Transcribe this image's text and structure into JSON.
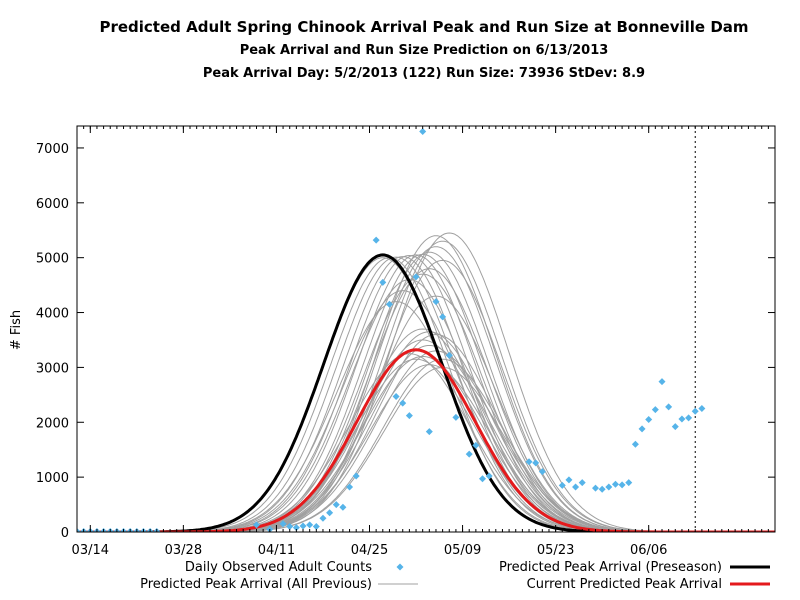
{
  "chart_data": {
    "type": "line",
    "title": "Predicted Adult Spring Chinook Arrival Peak and Run Size at Bonneville Dam",
    "subtitle": "Peak Arrival and Run Size Prediction on 6/13/2013",
    "subtitle2": "Peak Arrival Day: 5/2/2013 (122) Run Size: 73936 StDev: 8.9",
    "ylabel": "# Fish",
    "xlabel": "",
    "xlim": [
      "2013-03-12",
      "2013-06-25"
    ],
    "ylim": [
      0,
      7400
    ],
    "x_ticks": [
      {
        "date": "2013-03-14",
        "label": "03/14"
      },
      {
        "date": "2013-03-28",
        "label": "03/28"
      },
      {
        "date": "2013-04-11",
        "label": "04/11"
      },
      {
        "date": "2013-04-25",
        "label": "04/25"
      },
      {
        "date": "2013-05-09",
        "label": "05/09"
      },
      {
        "date": "2013-05-23",
        "label": "05/23"
      },
      {
        "date": "2013-06-06",
        "label": "06/06"
      }
    ],
    "y_ticks": [
      0,
      1000,
      2000,
      3000,
      4000,
      5000,
      6000,
      7000
    ],
    "vertical_marker_date": "2013-06-13",
    "legend": {
      "observed": "Daily Observed Adult Counts",
      "all_previous": "Predicted Peak Arrival (All Previous)",
      "preseason": "Predicted Peak Arrival (Preseason)",
      "current": "Current Predicted Peak Arrival"
    },
    "colors": {
      "observed": "#56b4e9",
      "all_previous": "#a0a0a0",
      "preseason": "#000000",
      "current": "#e41a1c"
    },
    "preseason_curve": {
      "peak_date": "2013-04-27",
      "peak": 5050,
      "stdev": 8.9
    },
    "current_curve": {
      "peak_date": "2013-05-02",
      "peak": 3320,
      "stdev": 8.9
    },
    "previous_curves": [
      {
        "peak_date": "2013-04-27",
        "peak": 5000,
        "stdev": 8.9
      },
      {
        "peak_date": "2013-04-28",
        "peak": 5000,
        "stdev": 8.9
      },
      {
        "peak_date": "2013-04-29",
        "peak": 5010,
        "stdev": 8.9
      },
      {
        "peak_date": "2013-04-30",
        "peak": 5020,
        "stdev": 8.9
      },
      {
        "peak_date": "2013-05-01",
        "peak": 5040,
        "stdev": 8.9
      },
      {
        "peak_date": "2013-05-02",
        "peak": 5050,
        "stdev": 8.9
      },
      {
        "peak_date": "2013-05-03",
        "peak": 5060,
        "stdev": 8.9
      },
      {
        "peak_date": "2013-05-04",
        "peak": 5100,
        "stdev": 8.9
      },
      {
        "peak_date": "2013-05-05",
        "peak": 5200,
        "stdev": 8.9
      },
      {
        "peak_date": "2013-05-06",
        "peak": 5300,
        "stdev": 8.9
      },
      {
        "peak_date": "2013-05-07",
        "peak": 5450,
        "stdev": 8.9
      },
      {
        "peak_date": "2013-05-05",
        "peak": 5400,
        "stdev": 8.9
      },
      {
        "peak_date": "2013-05-06",
        "peak": 4950,
        "stdev": 8.9
      },
      {
        "peak_date": "2013-05-04",
        "peak": 4800,
        "stdev": 8.9
      },
      {
        "peak_date": "2013-05-03",
        "peak": 4700,
        "stdev": 8.9
      },
      {
        "peak_date": "2013-05-01",
        "peak": 4600,
        "stdev": 8.9
      },
      {
        "peak_date": "2013-04-30",
        "peak": 4400,
        "stdev": 8.9
      },
      {
        "peak_date": "2013-04-29",
        "peak": 4200,
        "stdev": 8.9
      },
      {
        "peak_date": "2013-05-05",
        "peak": 4300,
        "stdev": 8.9
      },
      {
        "peak_date": "2013-05-03",
        "peak": 3700,
        "stdev": 8.9
      },
      {
        "peak_date": "2013-05-04",
        "peak": 3650,
        "stdev": 8.9
      },
      {
        "peak_date": "2013-05-05",
        "peak": 3600,
        "stdev": 8.9
      },
      {
        "peak_date": "2013-05-03",
        "peak": 3500,
        "stdev": 8.9
      },
      {
        "peak_date": "2013-05-04",
        "peak": 3400,
        "stdev": 8.9
      },
      {
        "peak_date": "2013-05-05",
        "peak": 3300,
        "stdev": 8.9
      },
      {
        "peak_date": "2013-05-06",
        "peak": 3150,
        "stdev": 8.9
      },
      {
        "peak_date": "2013-05-06",
        "peak": 3000,
        "stdev": 8.9
      },
      {
        "peak_date": "2013-05-04",
        "peak": 3050,
        "stdev": 8.9
      },
      {
        "peak_date": "2013-05-02",
        "peak": 3150,
        "stdev": 8.9
      },
      {
        "peak_date": "2013-05-01",
        "peak": 3250,
        "stdev": 8.9
      },
      {
        "peak_date": "2013-05-03",
        "peak": 3200,
        "stdev": 8.9
      }
    ],
    "observed": [
      {
        "date": "2013-03-12",
        "value": 10
      },
      {
        "date": "2013-03-13",
        "value": 10
      },
      {
        "date": "2013-03-14",
        "value": 10
      },
      {
        "date": "2013-03-15",
        "value": 10
      },
      {
        "date": "2013-03-16",
        "value": 10
      },
      {
        "date": "2013-03-17",
        "value": 10
      },
      {
        "date": "2013-03-18",
        "value": 10
      },
      {
        "date": "2013-03-19",
        "value": 10
      },
      {
        "date": "2013-03-20",
        "value": 10
      },
      {
        "date": "2013-03-21",
        "value": 10
      },
      {
        "date": "2013-03-22",
        "value": 10
      },
      {
        "date": "2013-03-23",
        "value": 10
      },
      {
        "date": "2013-03-24",
        "value": 10
      },
      {
        "date": "2013-04-08",
        "value": 130
      },
      {
        "date": "2013-04-10",
        "value": 50
      },
      {
        "date": "2013-04-12",
        "value": 150
      },
      {
        "date": "2013-04-13",
        "value": 100
      },
      {
        "date": "2013-04-14",
        "value": 80
      },
      {
        "date": "2013-04-15",
        "value": 110
      },
      {
        "date": "2013-04-16",
        "value": 130
      },
      {
        "date": "2013-04-17",
        "value": 100
      },
      {
        "date": "2013-04-18",
        "value": 250
      },
      {
        "date": "2013-04-19",
        "value": 350
      },
      {
        "date": "2013-04-20",
        "value": 500
      },
      {
        "date": "2013-04-21",
        "value": 450
      },
      {
        "date": "2013-04-22",
        "value": 820
      },
      {
        "date": "2013-04-23",
        "value": 1020
      },
      {
        "date": "2013-04-26",
        "value": 5320
      },
      {
        "date": "2013-04-27",
        "value": 4550
      },
      {
        "date": "2013-04-28",
        "value": 4150
      },
      {
        "date": "2013-04-29",
        "value": 2470
      },
      {
        "date": "2013-04-30",
        "value": 2350
      },
      {
        "date": "2013-05-01",
        "value": 2120
      },
      {
        "date": "2013-05-02",
        "value": 4650
      },
      {
        "date": "2013-05-03",
        "value": 7300
      },
      {
        "date": "2013-05-04",
        "value": 1830
      },
      {
        "date": "2013-05-05",
        "value": 4200
      },
      {
        "date": "2013-05-06",
        "value": 3920
      },
      {
        "date": "2013-05-07",
        "value": 3220
      },
      {
        "date": "2013-05-08",
        "value": 2090
      },
      {
        "date": "2013-05-10",
        "value": 1420
      },
      {
        "date": "2013-05-11",
        "value": 1580
      },
      {
        "date": "2013-05-12",
        "value": 970
      },
      {
        "date": "2013-05-13",
        "value": 1020
      },
      {
        "date": "2013-05-19",
        "value": 1280
      },
      {
        "date": "2013-05-20",
        "value": 1260
      },
      {
        "date": "2013-05-21",
        "value": 1100
      },
      {
        "date": "2013-05-24",
        "value": 850
      },
      {
        "date": "2013-05-25",
        "value": 950
      },
      {
        "date": "2013-05-26",
        "value": 820
      },
      {
        "date": "2013-05-27",
        "value": 900
      },
      {
        "date": "2013-05-29",
        "value": 800
      },
      {
        "date": "2013-05-30",
        "value": 780
      },
      {
        "date": "2013-05-31",
        "value": 820
      },
      {
        "date": "2013-06-01",
        "value": 870
      },
      {
        "date": "2013-06-02",
        "value": 860
      },
      {
        "date": "2013-06-03",
        "value": 900
      },
      {
        "date": "2013-06-04",
        "value": 1600
      },
      {
        "date": "2013-06-05",
        "value": 1880
      },
      {
        "date": "2013-06-06",
        "value": 2050
      },
      {
        "date": "2013-06-07",
        "value": 2230
      },
      {
        "date": "2013-06-08",
        "value": 2740
      },
      {
        "date": "2013-06-09",
        "value": 2280
      },
      {
        "date": "2013-06-10",
        "value": 1920
      },
      {
        "date": "2013-06-11",
        "value": 2060
      },
      {
        "date": "2013-06-12",
        "value": 2080
      },
      {
        "date": "2013-06-13",
        "value": 2200
      },
      {
        "date": "2013-06-14",
        "value": 2250
      }
    ]
  }
}
